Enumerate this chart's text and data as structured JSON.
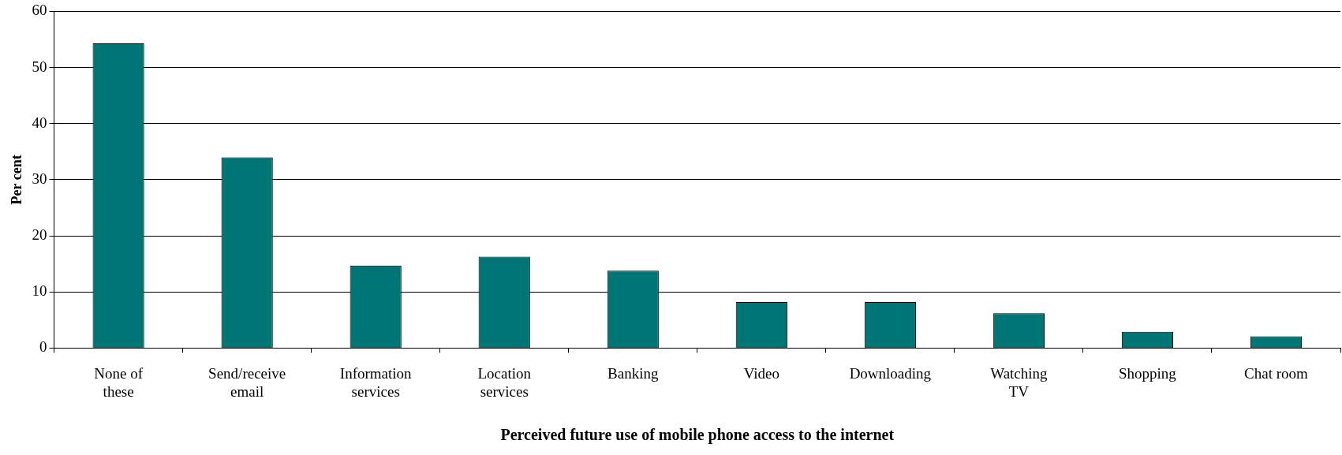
{
  "chart_data": {
    "type": "bar",
    "xlabel": "Perceived future use of mobile phone access to the internet",
    "ylabel": "Per cent",
    "categories": [
      "None of these",
      "Send/receive email",
      "Information services",
      "Location services",
      "Banking",
      "Video",
      "Downloading",
      "Watching TV",
      "Shopping",
      "Chat room"
    ],
    "values": [
      54.3,
      34,
      14.7,
      16.3,
      13.8,
      8.2,
      8.2,
      6.2,
      2.9,
      2.1
    ],
    "color": "#007575",
    "ylim": [
      0,
      60
    ],
    "yticks": [
      0,
      10,
      20,
      30,
      40,
      50,
      60
    ],
    "grid": "y",
    "legend": false
  }
}
